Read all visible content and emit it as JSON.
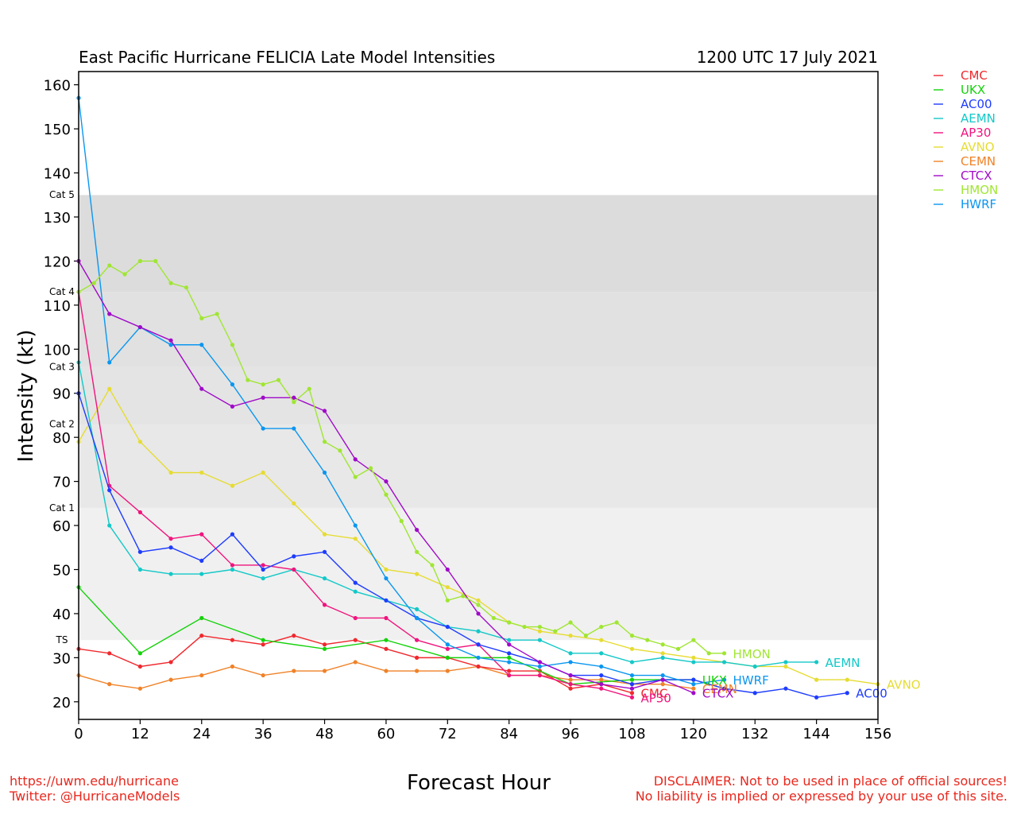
{
  "chart_data": {
    "type": "line",
    "title": "East Pacific Hurricane FELICIA Late Model Intensities",
    "subtitle": "1200 UTC 17 July 2021",
    "xlabel": "Forecast Hour",
    "ylabel": "Intensity (kt)",
    "xlim": [
      0,
      156
    ],
    "ylim": [
      16,
      163
    ],
    "xticks": [
      0,
      12,
      24,
      36,
      48,
      60,
      72,
      84,
      96,
      108,
      120,
      132,
      144,
      156
    ],
    "yticks": [
      20,
      30,
      40,
      50,
      60,
      70,
      80,
      90,
      100,
      110,
      120,
      130,
      140,
      150,
      160
    ],
    "legend_position": "outside-top-right",
    "bands": [
      {
        "label": "TS",
        "from": 34,
        "to": 64,
        "color": "#f0f0f0"
      },
      {
        "label": "Cat 1",
        "from": 64,
        "to": 83,
        "color": "#e8e8e8"
      },
      {
        "label": "Cat 2",
        "from": 83,
        "to": 96,
        "color": "#e4e4e4"
      },
      {
        "label": "Cat 3",
        "from": 96,
        "to": 113,
        "color": "#e1e1e1"
      },
      {
        "label": "Cat 4",
        "from": 113,
        "to": 135,
        "color": "#dcdcdc"
      },
      {
        "label": "Cat 5",
        "from": 135,
        "to": 163,
        "color": "#ffffff"
      }
    ],
    "series": [
      {
        "name": "CMC",
        "color": "#f0282d",
        "x": [
          0,
          6,
          12,
          18,
          24,
          30,
          36,
          42,
          48,
          54,
          60,
          66,
          72,
          78,
          84,
          90,
          96,
          102,
          108
        ],
        "values": [
          32,
          31,
          28,
          29,
          35,
          34,
          33,
          35,
          33,
          34,
          32,
          30,
          30,
          28,
          27,
          27,
          23,
          24,
          22
        ]
      },
      {
        "name": "UKX",
        "color": "#14d20a",
        "x": [
          0,
          12,
          24,
          36,
          48,
          60,
          72,
          84,
          96,
          108,
          120
        ],
        "values": [
          46,
          31,
          39,
          34,
          32,
          34,
          30,
          30,
          24,
          25,
          25
        ]
      },
      {
        "name": "AC00",
        "color": "#1e3cff",
        "x": [
          0,
          6,
          12,
          18,
          24,
          30,
          36,
          42,
          48,
          54,
          60,
          66,
          72,
          78,
          84,
          90,
          96,
          102,
          108,
          114,
          120,
          126,
          132,
          138,
          144,
          150
        ],
        "values": [
          90,
          68,
          54,
          55,
          52,
          58,
          50,
          53,
          54,
          47,
          43,
          39,
          37,
          33,
          31,
          29,
          26,
          26,
          24,
          25,
          25,
          23,
          22,
          23,
          21,
          22
        ]
      },
      {
        "name": "AEMN",
        "color": "#14c8c8",
        "x": [
          0,
          6,
          12,
          18,
          24,
          30,
          36,
          42,
          48,
          54,
          60,
          66,
          72,
          78,
          84,
          90,
          96,
          102,
          108,
          114,
          120,
          126,
          132,
          138,
          144
        ],
        "values": [
          97,
          60,
          50,
          49,
          49,
          50,
          48,
          50,
          48,
          45,
          43,
          41,
          37,
          36,
          34,
          34,
          31,
          31,
          29,
          30,
          29,
          29,
          28,
          29,
          29
        ]
      },
      {
        "name": "AP30",
        "color": "#f0147d",
        "x": [
          0,
          6,
          12,
          18,
          24,
          30,
          36,
          42,
          48,
          54,
          60,
          66,
          72,
          78,
          84,
          90,
          96,
          102,
          108
        ],
        "values": [
          113,
          69,
          63,
          57,
          58,
          51,
          51,
          50,
          42,
          39,
          39,
          34,
          32,
          33,
          26,
          26,
          24,
          23,
          21
        ]
      },
      {
        "name": "AVNO",
        "color": "#e6dc32",
        "x": [
          0,
          6,
          12,
          18,
          24,
          30,
          36,
          42,
          48,
          54,
          60,
          66,
          72,
          78,
          84,
          90,
          96,
          102,
          108,
          114,
          120,
          126,
          132,
          138,
          144,
          150,
          156
        ],
        "values": [
          79,
          91,
          79,
          72,
          72,
          69,
          72,
          65,
          58,
          57,
          50,
          49,
          46,
          43,
          38,
          36,
          35,
          34,
          32,
          31,
          30,
          29,
          28,
          28,
          25,
          25,
          24
        ]
      },
      {
        "name": "CEMN",
        "color": "#f08228",
        "x": [
          0,
          6,
          12,
          18,
          24,
          30,
          36,
          42,
          48,
          54,
          60,
          66,
          72,
          78,
          84,
          90,
          96,
          102,
          108,
          114,
          120
        ],
        "values": [
          26,
          24,
          23,
          25,
          26,
          28,
          26,
          27,
          27,
          29,
          27,
          27,
          27,
          28,
          26,
          26,
          25,
          25,
          24,
          24,
          23
        ]
      },
      {
        "name": "CTCX",
        "color": "#a00ac8",
        "x": [
          0,
          6,
          12,
          18,
          24,
          30,
          36,
          42,
          48,
          54,
          60,
          66,
          72,
          78,
          84,
          90,
          96,
          102,
          108,
          114,
          120
        ],
        "values": [
          120,
          108,
          105,
          102,
          91,
          87,
          89,
          89,
          86,
          75,
          70,
          59,
          50,
          40,
          33,
          29,
          26,
          24,
          23,
          25,
          22
        ]
      },
      {
        "name": "HMON",
        "color": "#a0e632",
        "x": [
          0,
          3,
          6,
          9,
          12,
          15,
          18,
          21,
          24,
          27,
          30,
          33,
          36,
          39,
          42,
          45,
          48,
          51,
          54,
          57,
          60,
          63,
          66,
          69,
          72,
          75,
          78,
          81,
          84,
          87,
          90,
          93,
          96,
          99,
          102,
          105,
          108,
          111,
          114,
          117,
          120,
          123,
          126
        ],
        "values": [
          113,
          115,
          119,
          117,
          120,
          120,
          115,
          114,
          107,
          108,
          101,
          93,
          92,
          93,
          88,
          91,
          79,
          77,
          71,
          73,
          67,
          61,
          54,
          51,
          43,
          44,
          42,
          39,
          38,
          37,
          37,
          36,
          38,
          35,
          37,
          38,
          35,
          34,
          33,
          32,
          34,
          31,
          31
        ]
      },
      {
        "name": "HWRF",
        "color": "#0a96f0",
        "x": [
          0,
          6,
          12,
          18,
          24,
          30,
          36,
          42,
          48,
          54,
          60,
          66,
          72,
          78,
          84,
          90,
          96,
          102,
          108,
          114,
          120,
          126
        ],
        "values": [
          157,
          97,
          105,
          101,
          101,
          92,
          82,
          82,
          72,
          60,
          48,
          39,
          33,
          30,
          29,
          28,
          29,
          28,
          26,
          26,
          24,
          25
        ]
      }
    ]
  },
  "footer": {
    "url": "https://uwm.edu/hurricane",
    "twitter": "Twitter: @HurricaneModels",
    "disclaimer_1": "DISCLAIMER: Not to be used in place of official sources!",
    "disclaimer_2": "No liability is implied or expressed by your use of this site."
  }
}
